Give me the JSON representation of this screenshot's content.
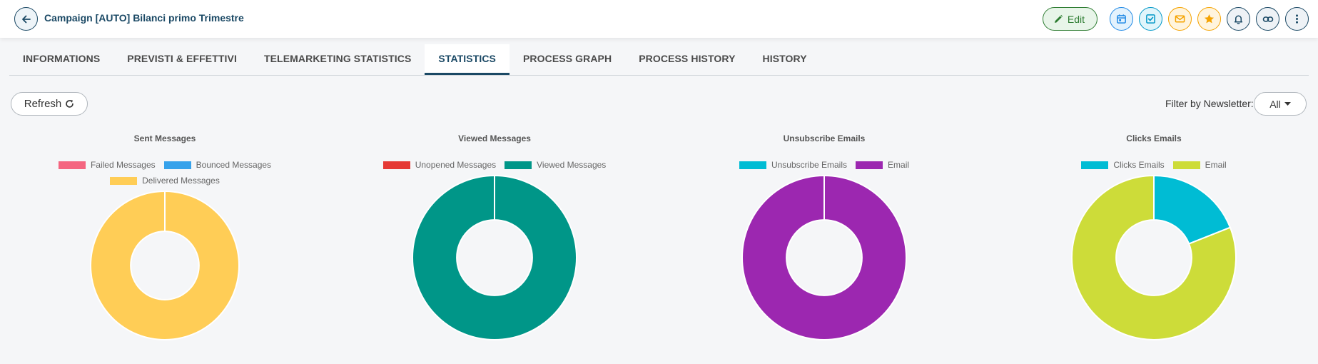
{
  "header": {
    "title": "Campaign [AUTO] Bilanci primo Trimestre",
    "edit_label": "Edit",
    "action_icons": [
      "calendar-icon",
      "task-check-icon",
      "mail-icon",
      "star-icon",
      "bell-icon",
      "link-icon",
      "more-vertical-icon"
    ]
  },
  "tabs": [
    {
      "label": "INFORMATIONS",
      "active": false
    },
    {
      "label": "PREVISTI & EFFETTIVI",
      "active": false
    },
    {
      "label": "TELEMARKETING STATISTICS",
      "active": false
    },
    {
      "label": "STATISTICS",
      "active": true
    },
    {
      "label": "PROCESS GRAPH",
      "active": false
    },
    {
      "label": "PROCESS HISTORY",
      "active": false
    },
    {
      "label": "HISTORY",
      "active": false
    }
  ],
  "toolbar": {
    "refresh_label": "Refresh",
    "filter_label": "Filter by Newsletter:",
    "filter_value": "All"
  },
  "colors": {
    "primary": "#1b4965",
    "failed": "#f46580",
    "bounced": "#36a2eb",
    "delivered": "#ffcd56",
    "unopened": "#e53935",
    "viewed": "#009688",
    "unsubscribe": "#00bcd4",
    "email": "#9c27b0",
    "clicks": "#00bcd4",
    "email_lime": "#cddc39"
  },
  "chart_data": [
    {
      "type": "pie",
      "title": "Sent Messages",
      "categories": [
        "Failed Messages",
        "Bounced Messages",
        "Delivered Messages"
      ],
      "values": [
        0,
        0,
        100
      ],
      "colors": [
        "#f46580",
        "#36a2eb",
        "#ffcd56"
      ],
      "legend_rows": [
        [
          "Failed Messages",
          "Bounced Messages"
        ],
        [
          "Delivered Messages"
        ]
      ]
    },
    {
      "type": "pie",
      "title": "Viewed Messages",
      "categories": [
        "Unopened Messages",
        "Viewed Messages"
      ],
      "values": [
        0,
        100
      ],
      "colors": [
        "#e53935",
        "#009688"
      ],
      "legend_rows": [
        [
          "Unopened Messages",
          "Viewed Messages"
        ]
      ]
    },
    {
      "type": "pie",
      "title": "Unsubscribe Emails",
      "categories": [
        "Unsubscribe Emails",
        "Email"
      ],
      "values": [
        0,
        100
      ],
      "colors": [
        "#00bcd4",
        "#9c27b0"
      ],
      "legend_rows": [
        [
          "Unsubscribe Emails",
          "Email"
        ]
      ]
    },
    {
      "type": "pie",
      "title": "Clicks Emails",
      "categories": [
        "Clicks Emails",
        "Email"
      ],
      "values": [
        19,
        81
      ],
      "colors": [
        "#00bcd4",
        "#cddc39"
      ],
      "legend_rows": [
        [
          "Clicks Emails",
          "Email"
        ]
      ]
    }
  ]
}
